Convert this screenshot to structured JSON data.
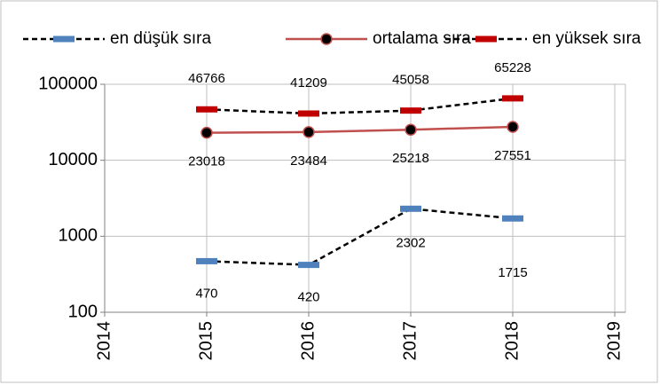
{
  "chart_data": {
    "type": "line",
    "x": [
      2015,
      2016,
      2017,
      2018
    ],
    "series": [
      {
        "name": "en düşük sıra",
        "color": "#000000",
        "line_style": "dashed",
        "marker": "dash",
        "marker_color": "#4f81bd",
        "values": [
          470,
          420,
          2302,
          1715
        ]
      },
      {
        "name": "ortalama sıra",
        "color": "#c0504d",
        "line_style": "solid",
        "marker": "circle",
        "marker_color": "#000000",
        "values": [
          23018,
          23484,
          25218,
          27551
        ]
      },
      {
        "name": "en yüksek sıra",
        "color": "#000000",
        "line_style": "dashed",
        "marker": "dash",
        "marker_color": "#c00000",
        "values": [
          46766,
          41209,
          45058,
          65228
        ]
      }
    ],
    "xlim": [
      2014,
      2019
    ],
    "xticks": [
      2014,
      2015,
      2016,
      2017,
      2018,
      2019
    ],
    "ylim": [
      100,
      100000
    ],
    "yticks": [
      100,
      1000,
      10000,
      100000
    ],
    "y_scale": "log",
    "grid": true,
    "legend": "top"
  }
}
